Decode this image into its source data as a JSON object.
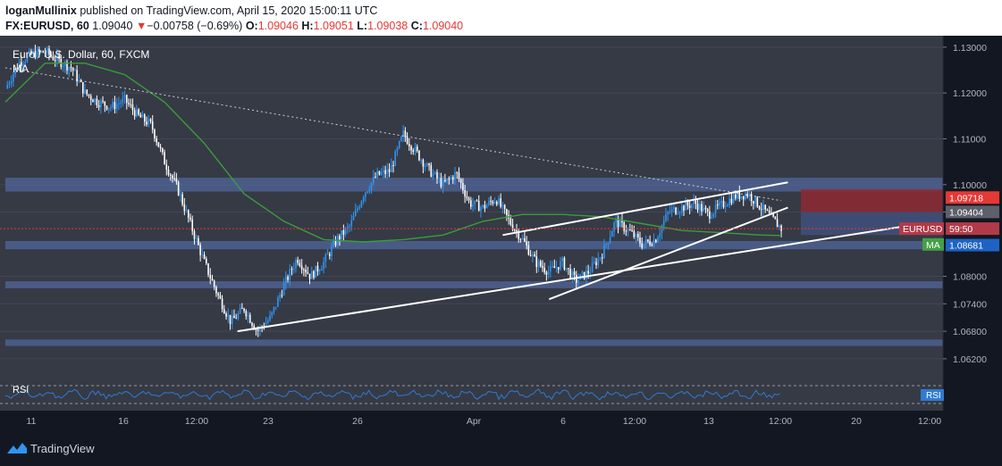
{
  "header": {
    "author": "loganMullinix",
    "published": "published on TradingView.com, April 15, 2020 15:00:11 UTC",
    "symbol": "FX:EURUSD, 60",
    "last": "1.09040",
    "change_arrow": "▼",
    "change": "−0.00758 (−0.69%)",
    "o_label": "O:",
    "o": "1.09046",
    "h_label": "H:",
    "h": "1.09051",
    "l_label": "L:",
    "l": "1.09038",
    "c_label": "C:",
    "c": "1.09040"
  },
  "overlay": {
    "title": "Euro / U.S. Dollar, 60, FXCM",
    "ma": "MA",
    "rsi": "RSI"
  },
  "footer": {
    "brand": "TradingView"
  },
  "colors": {
    "bg": "#363a45",
    "candle": "#2e95f2",
    "candle_bear": "#ffffff",
    "ma": "#3a9d3a",
    "zone": "#4c6290",
    "trend": "#ffffff",
    "rsi": "#2e7bd1",
    "red_tag": "#e53935",
    "green_tag": "#43a047"
  },
  "chart_data": {
    "type": "candlestick",
    "title": "Euro / U.S. Dollar, 60, FXCM",
    "ylim": [
      1.0575,
      1.1325
    ],
    "y_ticks": [
      "1.13000",
      "1.12000",
      "1.11000",
      "1.10000",
      "1.09404",
      "1.08000",
      "1.07400",
      "1.06800",
      "1.06200"
    ],
    "x_ticks": [
      "11",
      "16",
      "12:00",
      "23",
      "26",
      "Apr",
      "6",
      "12:00",
      "13",
      "12:00",
      "20",
      "12:00"
    ],
    "price_tags": [
      {
        "label": "1.09718",
        "value": 1.09718,
        "kind": "red"
      },
      {
        "label": "1.09404",
        "value": 1.09404,
        "kind": "gray"
      },
      {
        "label": "EURUSD",
        "value": 1.0904,
        "kind": "red-muted"
      },
      {
        "label": "59:50",
        "value": 1.0904,
        "kind": "red-muted"
      },
      {
        "label": "MA",
        "value": 1.0889,
        "kind": "green"
      },
      {
        "label": "1.08681",
        "value": 1.08681,
        "kind": "blue"
      }
    ],
    "zones": [
      {
        "low": 1.0985,
        "high": 1.1015
      },
      {
        "low": 1.0859,
        "high": 1.0877
      },
      {
        "low": 1.0774,
        "high": 1.0789
      },
      {
        "low": 1.0648,
        "high": 1.0662
      }
    ],
    "close_path": [
      [
        0,
        1.121
      ],
      [
        2,
        1.1265
      ],
      [
        4,
        1.1285
      ],
      [
        6,
        1.129
      ],
      [
        8,
        1.127
      ],
      [
        10,
        1.1255
      ],
      [
        12,
        1.12
      ],
      [
        14,
        1.118
      ],
      [
        16,
        1.117
      ],
      [
        18,
        1.1185
      ],
      [
        20,
        1.115
      ],
      [
        22,
        1.113
      ],
      [
        24,
        1.105
      ],
      [
        26,
        1.099
      ],
      [
        28,
        1.091
      ],
      [
        30,
        1.083
      ],
      [
        32,
        1.076
      ],
      [
        34,
        1.07
      ],
      [
        36,
        1.073
      ],
      [
        38,
        1.068
      ],
      [
        40,
        1.071
      ],
      [
        42,
        1.078
      ],
      [
        44,
        1.084
      ],
      [
        46,
        1.08
      ],
      [
        48,
        1.083
      ],
      [
        50,
        1.088
      ],
      [
        52,
        1.091
      ],
      [
        54,
        1.098
      ],
      [
        56,
        1.102
      ],
      [
        58,
        1.103
      ],
      [
        60,
        1.111
      ],
      [
        62,
        1.107
      ],
      [
        64,
        1.103
      ],
      [
        66,
        1.1
      ],
      [
        68,
        1.1025
      ],
      [
        70,
        1.096
      ],
      [
        72,
        1.095
      ],
      [
        74,
        1.097
      ],
      [
        76,
        1.092
      ],
      [
        78,
        1.088
      ],
      [
        80,
        1.083
      ],
      [
        82,
        1.081
      ],
      [
        84,
        1.083
      ],
      [
        86,
        1.079
      ],
      [
        88,
        1.081
      ],
      [
        90,
        1.085
      ],
      [
        92,
        1.092
      ],
      [
        94,
        1.09
      ],
      [
        96,
        1.087
      ],
      [
        98,
        1.088
      ],
      [
        100,
        1.094
      ],
      [
        102,
        1.095
      ],
      [
        104,
        1.096
      ],
      [
        106,
        1.0935
      ],
      [
        108,
        1.0955
      ],
      [
        110,
        1.0975
      ],
      [
        112,
        1.098
      ],
      [
        114,
        1.095
      ],
      [
        116,
        1.092
      ],
      [
        117,
        1.0904
      ]
    ],
    "ma_path": [
      [
        0,
        1.118
      ],
      [
        6,
        1.1265
      ],
      [
        12,
        1.1265
      ],
      [
        18,
        1.124
      ],
      [
        24,
        1.118
      ],
      [
        30,
        1.109
      ],
      [
        36,
        1.098
      ],
      [
        42,
        1.092
      ],
      [
        48,
        1.088
      ],
      [
        54,
        1.0875
      ],
      [
        60,
        1.088
      ],
      [
        66,
        1.089
      ],
      [
        72,
        1.092
      ],
      [
        78,
        1.0935
      ],
      [
        84,
        1.0935
      ],
      [
        90,
        1.093
      ],
      [
        96,
        1.0915
      ],
      [
        102,
        1.09
      ],
      [
        108,
        1.0895
      ],
      [
        114,
        1.089
      ],
      [
        117,
        1.0889
      ]
    ],
    "trend_lines": [
      {
        "from": [
          0,
          1.1255
        ],
        "to": [
          117,
          1.0965
        ],
        "style": "dotted"
      },
      {
        "from": [
          35,
          1.068
        ],
        "to": [
          136,
          1.091
        ],
        "style": "solid"
      },
      {
        "from": [
          75,
          1.089
        ],
        "to": [
          118,
          1.1005
        ],
        "style": "solid"
      },
      {
        "from": [
          82,
          1.075
        ],
        "to": [
          118,
          1.095
        ],
        "style": "solid"
      }
    ],
    "rsi": {
      "label": "RSI",
      "upper": 70,
      "lower": 30
    }
  }
}
